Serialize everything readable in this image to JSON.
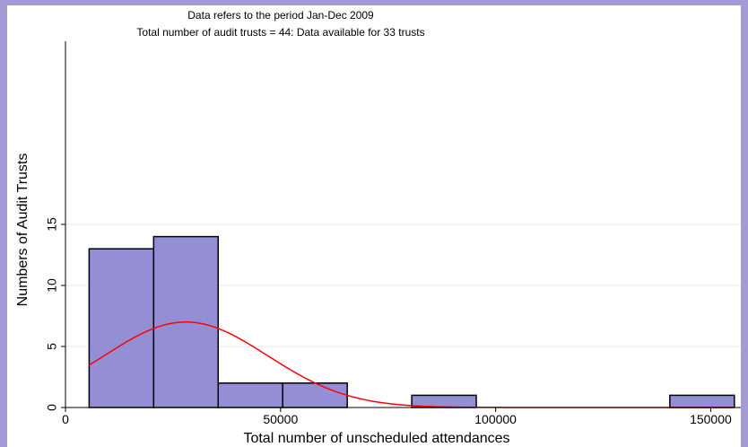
{
  "chart_data": {
    "type": "bar",
    "title": "Data refers to the period Jan-Dec 2009",
    "subtitle": "Total number of audit trusts = 44: Data available for 33 trusts",
    "xlabel": "Total number of unscheduled attendances",
    "ylabel": "Numbers of Audit Trusts",
    "xlim": [
      0,
      157000
    ],
    "ylim": [
      0,
      30
    ],
    "x_ticks": [
      0,
      50000,
      100000,
      150000
    ],
    "x_tick_labels": [
      "0",
      "50000",
      "100000",
      "150000"
    ],
    "y_ticks": [
      0,
      5,
      10,
      15
    ],
    "y_tick_labels": [
      "0",
      "5",
      "10",
      "15"
    ],
    "grid": "horizontal",
    "legend": "none",
    "bin_width": 15000,
    "bins": [
      {
        "start": 5500,
        "end": 20500,
        "count": 13
      },
      {
        "start": 20500,
        "end": 35500,
        "count": 14
      },
      {
        "start": 35500,
        "end": 50500,
        "count": 2
      },
      {
        "start": 50500,
        "end": 65500,
        "count": 2
      },
      {
        "start": 65500,
        "end": 80500,
        "count": 0
      },
      {
        "start": 80500,
        "end": 95500,
        "count": 1
      },
      {
        "start": 95500,
        "end": 110500,
        "count": 0
      },
      {
        "start": 110500,
        "end": 125500,
        "count": 0
      },
      {
        "start": 125500,
        "end": 140500,
        "count": 0
      },
      {
        "start": 140500,
        "end": 155500,
        "count": 1
      }
    ],
    "density_curve": {
      "type": "normal",
      "peak_x": 28000,
      "peak_y": 7,
      "x_range": [
        5500,
        155500
      ]
    },
    "colors": {
      "bar_fill": "#948fd4",
      "bar_edge": "#000000",
      "curve": "#ff0000",
      "grid": "#e6eef0",
      "background": "#a49bd6"
    }
  }
}
